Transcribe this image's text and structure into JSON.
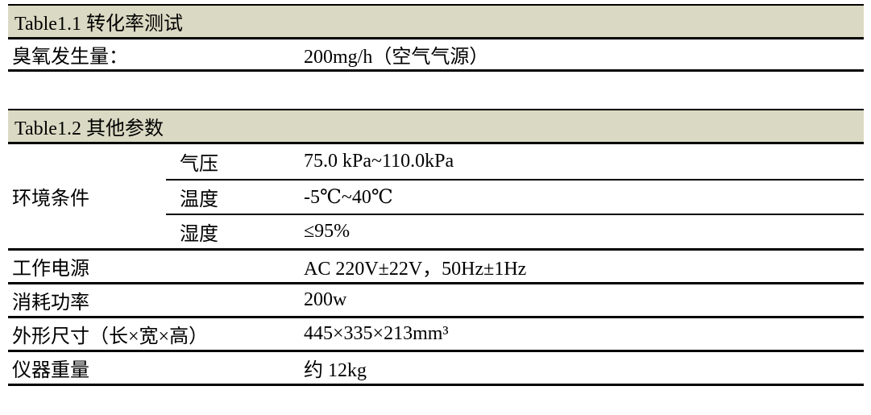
{
  "colors": {
    "page_background": "#ffffff",
    "header_band": "#dadac4",
    "rule_line": "#000000",
    "text": "#000000"
  },
  "table1": {
    "title": "Table1.1 转化率测试",
    "rows": [
      {
        "label": "臭氧发生量：",
        "value": "200mg/h（空气气源）"
      }
    ]
  },
  "table2": {
    "title": "Table1.2 其他参数",
    "env_group": {
      "label": "环境条件",
      "rows": [
        {
          "param": "气压",
          "value": "75.0 kPa~110.0kPa"
        },
        {
          "param": "温度",
          "value": "-5℃~40℃"
        },
        {
          "param": "湿度",
          "value": "≤95%"
        }
      ]
    },
    "rows": [
      {
        "label": "工作电源",
        "value": "AC 220V±22V，50Hz±1Hz"
      },
      {
        "label": "消耗功率",
        "value": "200w"
      },
      {
        "label": "外形尺寸（长×宽×高）",
        "value": "445×335×213mm³"
      },
      {
        "label": "仪器重量",
        "value": "约 12kg"
      }
    ]
  }
}
